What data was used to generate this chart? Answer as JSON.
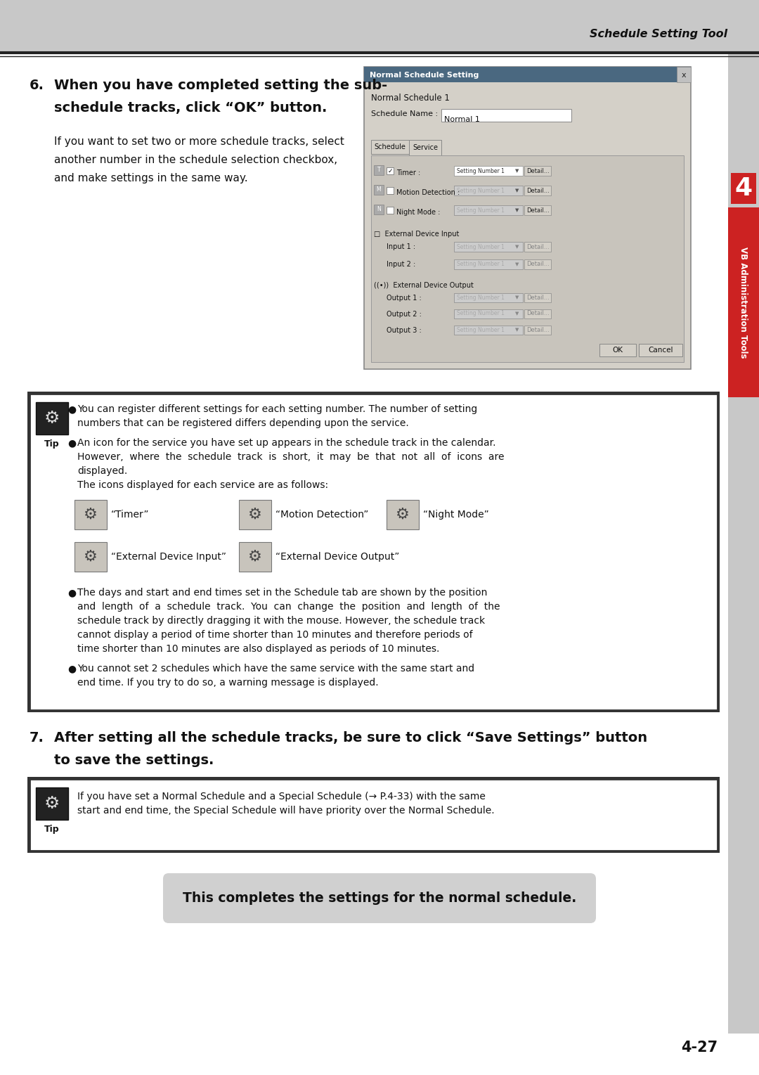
{
  "page_bg": "#ffffff",
  "header_bg": "#c8c8c8",
  "header_text": "Schedule Setting Tool",
  "sidebar_bg": "#c8c8c8",
  "sidebar_text": "VB Administration Tools",
  "sidebar_tab_color": "#cc2222",
  "section6_number": "6.",
  "section6_title_line1": "When you have completed setting the sub-",
  "section6_title_line2": "schedule tracks, click “OK” button.",
  "section6_body_line1": "If you want to set two or more schedule tracks, select",
  "section6_body_line2": "another number in the schedule selection checkbox,",
  "section6_body_line3": "and make settings in the same way.",
  "tip_box1_bullet1_line1": "You can register different settings for each setting number. The number of setting",
  "tip_box1_bullet1_line2": "numbers that can be registered differs depending upon the service.",
  "tip_box1_bullet2_line1": "An icon for the service you have set up appears in the schedule track in the calendar.",
  "tip_box1_bullet2_line2": "However,  where  the  schedule  track  is  short,  it  may  be  that  not  all  of  icons  are",
  "tip_box1_bullet2_line3": "displayed.",
  "tip_box1_bullet2_line4": "The icons displayed for each service are as follows:",
  "icon_label_timer": "“Timer”",
  "icon_label_motion": "“Motion Detection”",
  "icon_label_night": "“Night Mode”",
  "icon_label_extinput": "“External Device Input”",
  "icon_label_extoutput": "“External Device Output”",
  "tip_box1_bullet3_line1": "The days and start and end times set in the Schedule tab are shown by the position",
  "tip_box1_bullet3_line2": "and  length  of  a  schedule  track.  You  can  change  the  position  and  length  of  the",
  "tip_box1_bullet3_line3": "schedule track by directly dragging it with the mouse. However, the schedule track",
  "tip_box1_bullet3_line4": "cannot display a period of time shorter than 10 minutes and therefore periods of",
  "tip_box1_bullet3_line5": "time shorter than 10 minutes are also displayed as periods of 10 minutes.",
  "tip_box1_bullet4_line1": "You cannot set 2 schedules which have the same service with the same start and",
  "tip_box1_bullet4_line2": "end time. If you try to do so, a warning message is displayed.",
  "section7_number": "7.",
  "section7_title_line1": "After setting all the schedule tracks, be sure to click “Save Settings” button",
  "section7_title_line2": "to save the settings.",
  "tip_box2_line1": "If you have set a Normal Schedule and a Special Schedule (→ P.4-33) with the same",
  "tip_box2_line2": "start and end time, the Special Schedule will have priority over the Normal Schedule.",
  "closing_text": "This completes the settings for the normal schedule.",
  "page_number": "4-27",
  "dialog_title": "Normal Schedule Setting"
}
